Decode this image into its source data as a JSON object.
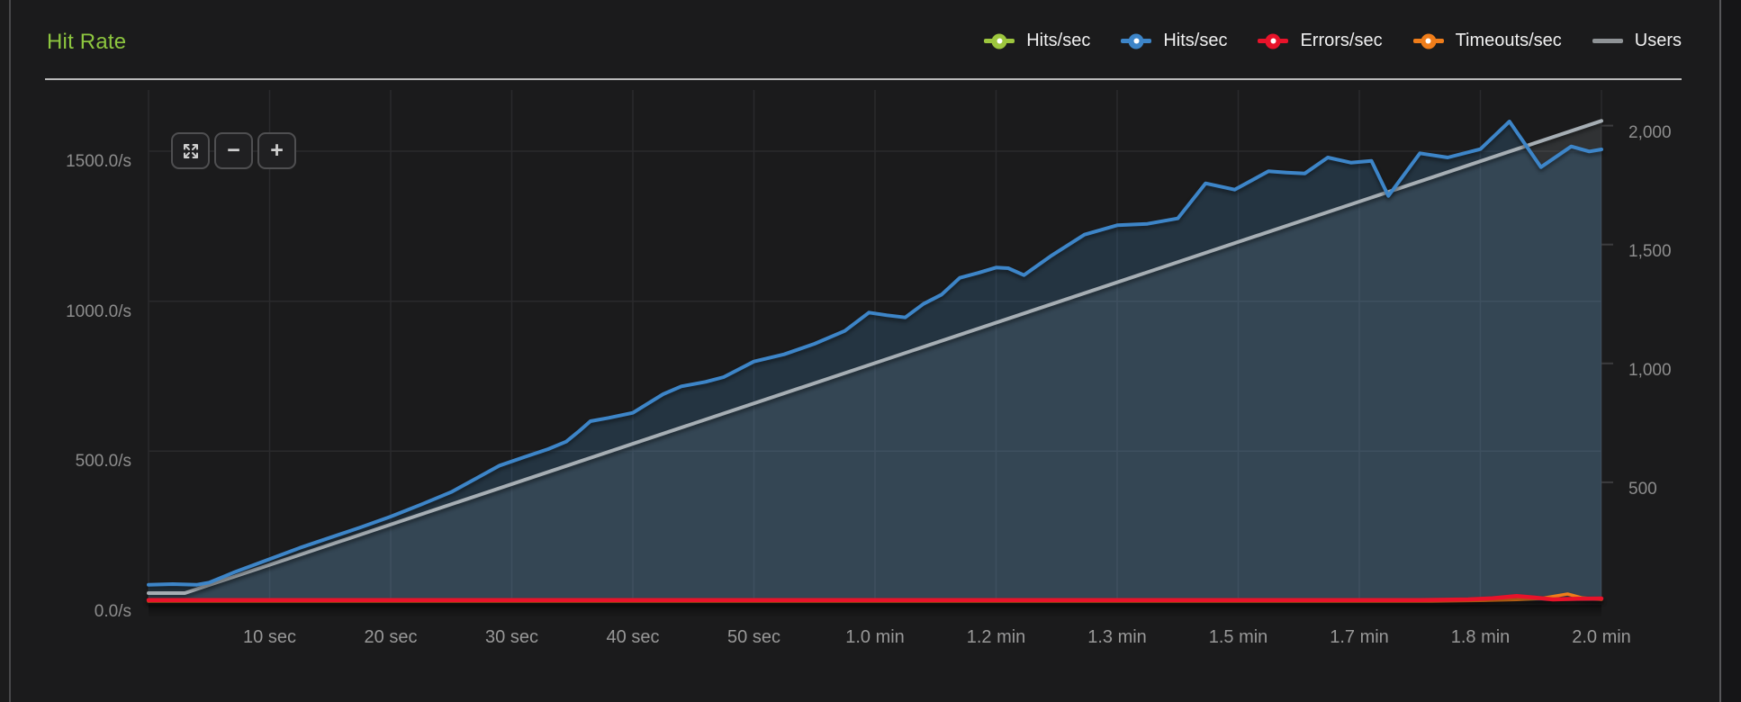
{
  "header": {
    "title": "Hit Rate",
    "accent_color": "#8dc63f"
  },
  "toolbar": {
    "fullscreen_icon": "expand-arrows-icon",
    "zoom_out_label": "−",
    "zoom_in_label": "+"
  },
  "legend": [
    {
      "label": "Hits/sec",
      "color": "#9dc63e",
      "marker": "dot-line"
    },
    {
      "label": "Hits/sec",
      "color": "#3d85c8",
      "marker": "dot-line"
    },
    {
      "label": "Errors/sec",
      "color": "#e8132a",
      "marker": "dot-line"
    },
    {
      "label": "Timeouts/sec",
      "color": "#ef7d1a",
      "marker": "dot-line"
    },
    {
      "label": "Users",
      "color": "#8f9396",
      "marker": "line"
    }
  ],
  "chart_data": {
    "type": "area",
    "title": "Hit Rate",
    "xlabel": "",
    "x_unit": "seconds",
    "xlim": [
      0,
      120
    ],
    "grid": true,
    "legend_position": "top-right",
    "x_ticks": [
      {
        "t": 10,
        "label": "10 sec"
      },
      {
        "t": 20,
        "label": "20 sec"
      },
      {
        "t": 30,
        "label": "30 sec"
      },
      {
        "t": 40,
        "label": "40 sec"
      },
      {
        "t": 50,
        "label": "50 sec"
      },
      {
        "t": 60,
        "label": "1.0 min"
      },
      {
        "t": 70,
        "label": "1.2 min"
      },
      {
        "t": 80,
        "label": "1.3 min"
      },
      {
        "t": 90,
        "label": "1.5 min"
      },
      {
        "t": 100,
        "label": "1.7 min"
      },
      {
        "t": 110,
        "label": "1.8 min"
      },
      {
        "t": 120,
        "label": "2.0 min"
      }
    ],
    "left_axis": {
      "unit": "hits/sec",
      "lim": [
        0,
        1704
      ],
      "ticks": [
        {
          "v": 1500,
          "label": "1500.0/s"
        },
        {
          "v": 1000,
          "label": "1000.0/s"
        },
        {
          "v": 500,
          "label": "500.0/s"
        },
        {
          "v": 0,
          "label": "0.0/s"
        }
      ]
    },
    "right_axis": {
      "unit": "users",
      "lim": [
        0,
        2150
      ],
      "ticks": [
        {
          "v": 2000,
          "label": "2,000"
        },
        {
          "v": 1500,
          "label": "1,500"
        },
        {
          "v": 1000,
          "label": "1,000"
        },
        {
          "v": 500,
          "label": "500"
        }
      ]
    },
    "series": [
      {
        "name": "Hits/sec",
        "color": "#9dc63e",
        "axis": "left",
        "width": 4,
        "visible": false,
        "points": []
      },
      {
        "name": "Hits/sec",
        "color": "#3d85c8",
        "axis": "left",
        "width": 4,
        "visible": true,
        "fill": "rgba(70,140,200,0.22)",
        "points": [
          [
            0,
            55
          ],
          [
            2,
            57
          ],
          [
            4,
            55
          ],
          [
            5,
            62
          ],
          [
            7,
            95
          ],
          [
            10,
            140
          ],
          [
            12.5,
            178
          ],
          [
            15,
            212
          ],
          [
            17.5,
            246
          ],
          [
            20,
            282
          ],
          [
            22.5,
            322
          ],
          [
            25,
            364
          ],
          [
            27,
            408
          ],
          [
            29,
            452
          ],
          [
            31,
            480
          ],
          [
            33,
            507
          ],
          [
            34.5,
            532
          ],
          [
            35.5,
            565
          ],
          [
            36.5,
            600
          ],
          [
            38,
            611
          ],
          [
            40,
            628
          ],
          [
            42.5,
            690
          ],
          [
            44,
            716
          ],
          [
            46,
            731
          ],
          [
            47.5,
            747
          ],
          [
            50,
            799
          ],
          [
            52.5,
            823
          ],
          [
            55,
            858
          ],
          [
            57.5,
            901
          ],
          [
            59.5,
            962
          ],
          [
            61,
            953
          ],
          [
            62.5,
            946
          ],
          [
            64,
            991
          ],
          [
            65.5,
            1022
          ],
          [
            67,
            1078
          ],
          [
            68.5,
            1094
          ],
          [
            70,
            1112
          ],
          [
            71,
            1110
          ],
          [
            72.3,
            1087
          ],
          [
            74.5,
            1150
          ],
          [
            77.3,
            1222
          ],
          [
            80,
            1253
          ],
          [
            82.5,
            1258
          ],
          [
            85,
            1276
          ],
          [
            87.3,
            1393
          ],
          [
            89.7,
            1372
          ],
          [
            92.5,
            1433
          ],
          [
            94,
            1429
          ],
          [
            95.5,
            1426
          ],
          [
            97.4,
            1479
          ],
          [
            99.3,
            1462
          ],
          [
            101,
            1468
          ],
          [
            102.4,
            1351
          ],
          [
            105,
            1493
          ],
          [
            107.3,
            1479
          ],
          [
            110,
            1507
          ],
          [
            112.4,
            1599
          ],
          [
            115,
            1447
          ],
          [
            117.5,
            1516
          ],
          [
            119,
            1499
          ],
          [
            120,
            1506
          ]
        ]
      },
      {
        "name": "Errors/sec",
        "color": "#e8132a",
        "axis": "left",
        "width": 4.5,
        "visible": true,
        "points": [
          [
            0,
            4
          ],
          [
            90,
            4
          ],
          [
            105,
            4
          ],
          [
            109,
            6
          ],
          [
            111,
            10
          ],
          [
            113,
            17
          ],
          [
            114.5,
            12
          ],
          [
            116,
            6
          ],
          [
            118,
            8
          ],
          [
            120,
            9
          ]
        ]
      },
      {
        "name": "Timeouts/sec",
        "color": "#ef7d1a",
        "axis": "left",
        "width": 3.5,
        "visible": true,
        "points": [
          [
            0,
            0
          ],
          [
            106,
            0
          ],
          [
            110,
            2
          ],
          [
            113,
            5
          ],
          [
            115,
            9
          ],
          [
            117.2,
            24
          ],
          [
            118.4,
            11
          ],
          [
            120,
            6
          ]
        ]
      },
      {
        "name": "Users",
        "color": "#a6aeb4",
        "axis": "right",
        "width": 4,
        "visible": true,
        "fill": "rgba(190,205,220,0.13)",
        "points": [
          [
            0,
            34
          ],
          [
            3,
            34
          ],
          [
            120,
            2020
          ]
        ]
      }
    ]
  }
}
